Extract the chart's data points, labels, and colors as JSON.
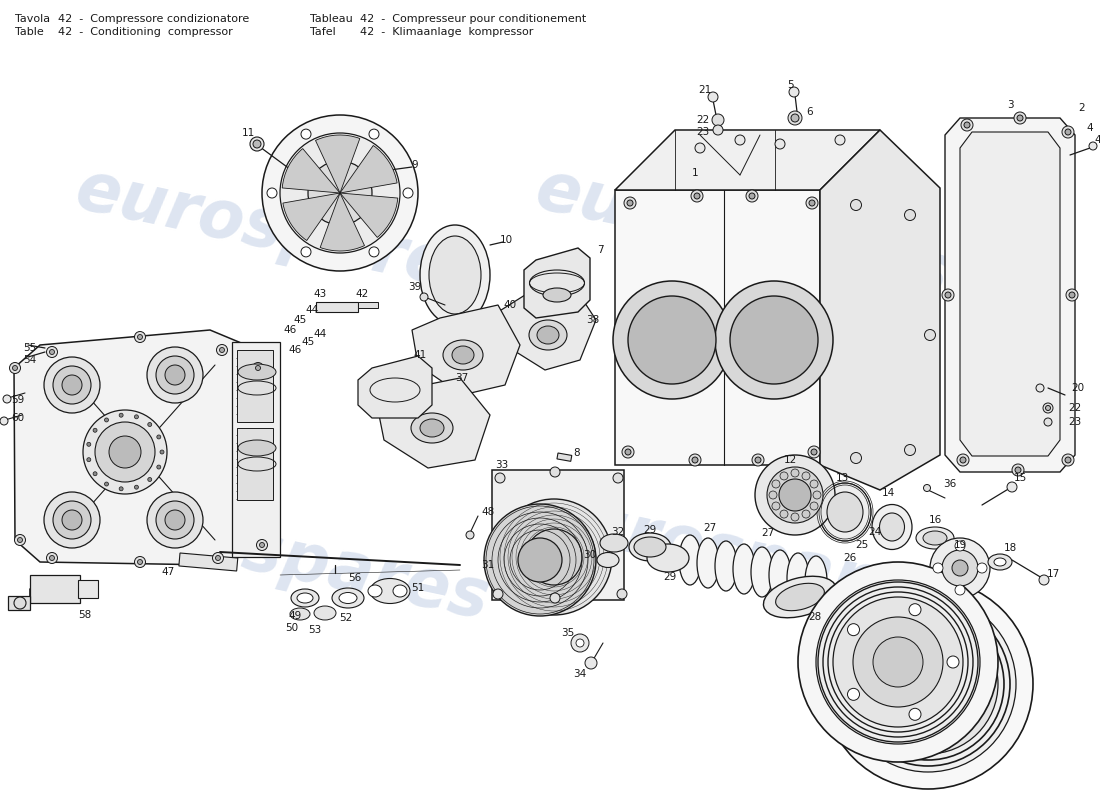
{
  "bg_color": "#ffffff",
  "line_color": "#1a1a1a",
  "text_color": "#1a1a1a",
  "watermark_color": "#c8d4e8",
  "fig_width": 11.0,
  "fig_height": 8.0,
  "dpi": 100,
  "header": [
    [
      "Tavola",
      "42  -  Compressore condizionatore",
      "Tableau",
      "42  -  Compresseur pour conditionement"
    ],
    [
      "Table",
      "42  -  Conditioning  compressor",
      "Tafel",
      "42  -  Klimaanlage  kompressor"
    ]
  ]
}
